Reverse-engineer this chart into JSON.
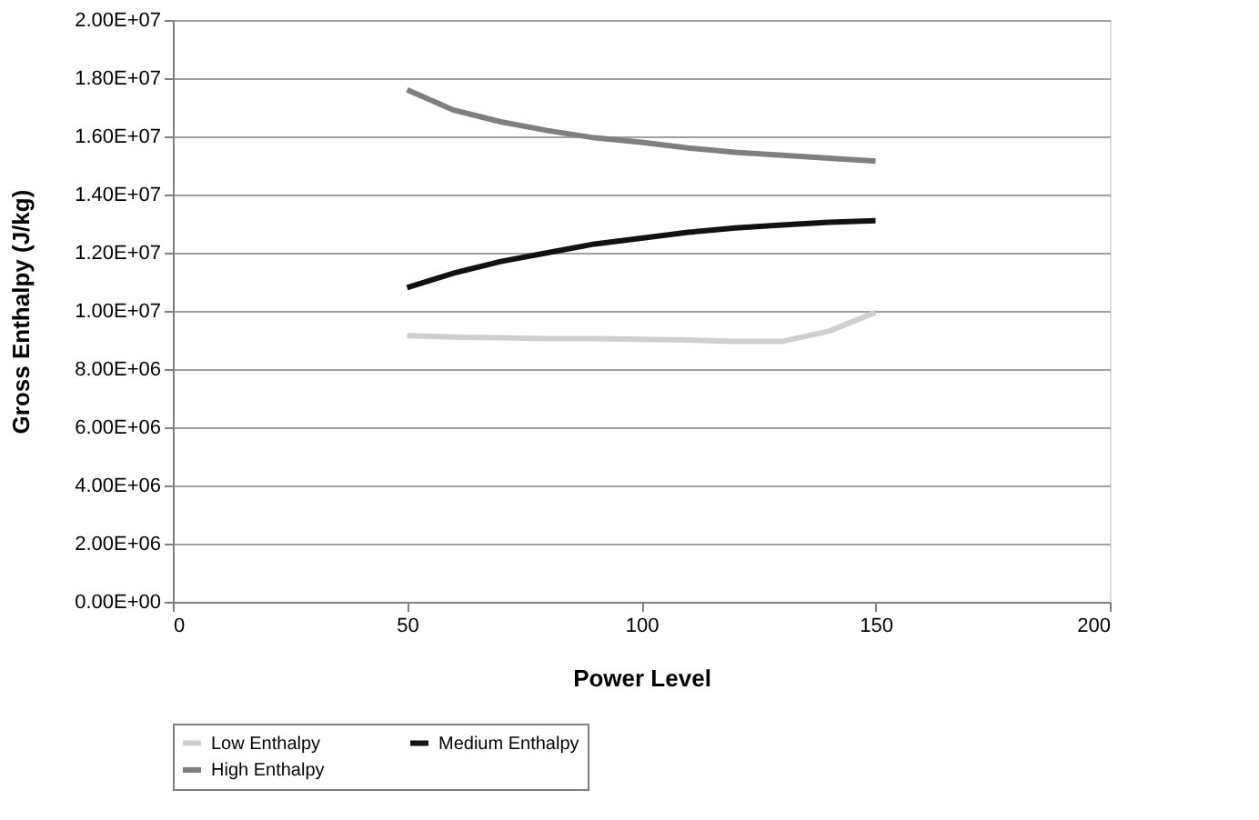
{
  "chart_data": {
    "type": "line",
    "xlabel": "Power Level",
    "ylabel": "Gross Enthalpy (J/kg)",
    "x": [
      50,
      60,
      70,
      80,
      90,
      100,
      110,
      120,
      130,
      140,
      150
    ],
    "series": [
      {
        "name": "Low Enthalpy",
        "color": "#cfcfcf",
        "values": [
          9150000,
          9100000,
          9080000,
          9050000,
          9050000,
          9020000,
          9000000,
          8950000,
          8950000,
          9300000,
          9950000
        ]
      },
      {
        "name": "Medium Enthalpy",
        "color": "#111111",
        "values": [
          10800000,
          11300000,
          11700000,
          12000000,
          12300000,
          12500000,
          12700000,
          12850000,
          12950000,
          13050000,
          13100000
        ]
      },
      {
        "name": "High Enthalpy",
        "color": "#7f7f7f",
        "values": [
          17600000,
          16900000,
          16500000,
          16200000,
          15950000,
          15800000,
          15600000,
          15450000,
          15350000,
          15250000,
          15150000
        ]
      }
    ],
    "xlim": [
      0,
      200
    ],
    "xticks": [
      0,
      50,
      100,
      150,
      200
    ],
    "ylim": [
      0,
      20000000
    ],
    "yticks": [
      {
        "value": 0,
        "label": "0.00E+00"
      },
      {
        "value": 2000000,
        "label": "2.00E+06"
      },
      {
        "value": 4000000,
        "label": "4.00E+06"
      },
      {
        "value": 6000000,
        "label": "6.00E+06"
      },
      {
        "value": 8000000,
        "label": "8.00E+06"
      },
      {
        "value": 10000000,
        "label": "1.00E+07"
      },
      {
        "value": 12000000,
        "label": "1.20E+07"
      },
      {
        "value": 14000000,
        "label": "1.40E+07"
      },
      {
        "value": 16000000,
        "label": "1.60E+07"
      },
      {
        "value": 18000000,
        "label": "1.80E+07"
      },
      {
        "value": 20000000,
        "label": "2.00E+07"
      }
    ],
    "grid": "y",
    "legend": "bottom",
    "marker": "none",
    "line_style": "solid"
  }
}
